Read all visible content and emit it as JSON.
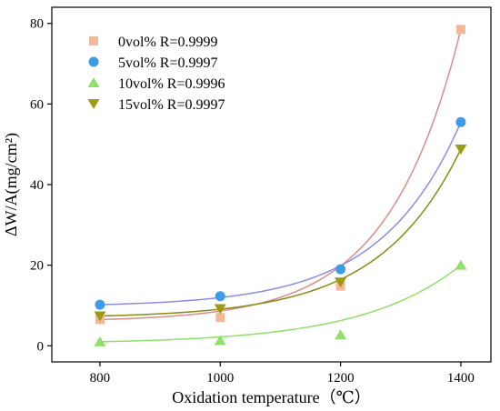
{
  "chart_data": {
    "type": "scatter",
    "title": "",
    "xlabel": "Oxidation temperature（℃）",
    "ylabel": "ΔW/A(mg/cm²)",
    "x": [
      800,
      1000,
      1200,
      1400
    ],
    "xticks": [
      800,
      1000,
      1200,
      1400
    ],
    "yticks": [
      0,
      20,
      40,
      60,
      80
    ],
    "xlim": [
      720,
      1450
    ],
    "ylim": [
      -4,
      84
    ],
    "grid": false,
    "legend_position": "top-left",
    "series": [
      {
        "name": "0vol%",
        "label": "0vol%  R=0.9999",
        "marker": "square",
        "color": "#f3b89a",
        "line_color": "#d98c8c",
        "values": [
          6.5,
          7.0,
          14.8,
          78.5
        ]
      },
      {
        "name": "5vol%",
        "label": "5vol%  R=0.9997",
        "marker": "circle",
        "color": "#3d9be9",
        "line_color": "#8c8ce0",
        "values": [
          10.2,
          12.3,
          19.0,
          55.5
        ]
      },
      {
        "name": "10vol%",
        "label": "10vol% R=0.9996",
        "marker": "triangle-up",
        "color": "#8fe06a",
        "line_color": "#8fe06a",
        "values": [
          1.0,
          1.3,
          2.7,
          20.0
        ]
      },
      {
        "name": "15vol%",
        "label": "15vol% R=0.9997",
        "marker": "triangle-down",
        "color": "#9b9b14",
        "line_color": "#8a8a14",
        "values": [
          7.4,
          9.2,
          15.8,
          48.8
        ]
      }
    ]
  }
}
